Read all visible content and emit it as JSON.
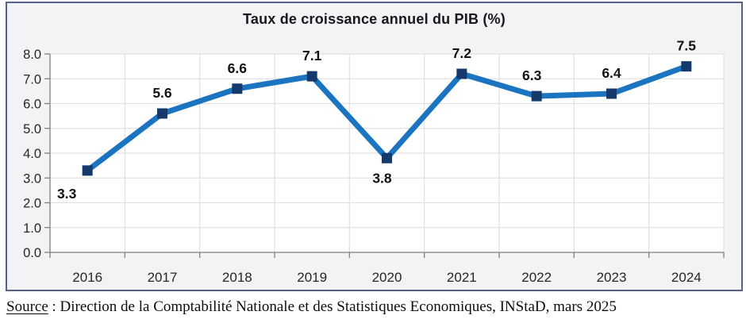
{
  "chart_data": {
    "type": "line",
    "title": "Taux de croissance annuel du PIB (%)",
    "categories": [
      "2016",
      "2017",
      "2018",
      "2019",
      "2020",
      "2021",
      "2022",
      "2023",
      "2024"
    ],
    "values": [
      3.3,
      5.6,
      6.6,
      7.1,
      3.8,
      7.2,
      6.3,
      6.4,
      7.5
    ],
    "data_labels": [
      "3.3",
      "5.6",
      "6.6",
      "7.1",
      "3.8",
      "7.2",
      "6.3",
      "6.4",
      "7.5"
    ],
    "label_positions": [
      "below-left",
      "above",
      "above",
      "above",
      "below",
      "above",
      "above-left",
      "above",
      "above"
    ],
    "xlabel": "",
    "ylabel": "",
    "ylim": [
      0,
      8
    ],
    "ytick_step": 1,
    "ytick_labels": [
      "0.0",
      "1.0",
      "2.0",
      "3.0",
      "4.0",
      "5.0",
      "6.0",
      "7.0",
      "8.0"
    ],
    "grid": "horizontal-and-vertical",
    "legend": "none",
    "marker": "square"
  },
  "colors": {
    "line": "#1b74bf",
    "marker": "#16396b",
    "grid": "#e0e0e0",
    "axis": "#7f7f7f",
    "plot_bg": "#ffffff",
    "box_bg": "#f2f3f5",
    "box_border": "#56618a",
    "tick_label": "#262626",
    "data_label": "#121212"
  },
  "source": {
    "word": "Source",
    "rest": " : Direction de la Comptabilité Nationale et des Statistiques Economiques, INStaD, mars 2025"
  }
}
